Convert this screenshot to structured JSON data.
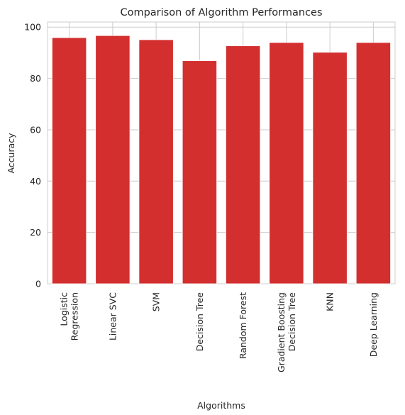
{
  "chart_data": {
    "type": "bar",
    "title": "Comparison of Algorithm Performances",
    "xlabel": "Algorithms",
    "ylabel": "Accuracy",
    "categories": [
      [
        "Logistic",
        "Regression"
      ],
      [
        "Linear SVC"
      ],
      [
        "SVM"
      ],
      [
        "Decision Tree"
      ],
      [
        "Random Forest"
      ],
      [
        "Gradient Boosting",
        "Decision Tree"
      ],
      [
        "KNN"
      ],
      [
        "Deep Learning"
      ]
    ],
    "values": [
      95.9,
      96.7,
      95.1,
      86.9,
      92.7,
      94.0,
      90.2,
      94.0
    ],
    "ylim": [
      0,
      102
    ],
    "yticks": [
      0,
      20,
      40,
      60,
      80,
      100
    ],
    "bar_color": "#d32f2f",
    "grid": true,
    "background": "#ffffff",
    "grid_color": "#cccccc"
  }
}
